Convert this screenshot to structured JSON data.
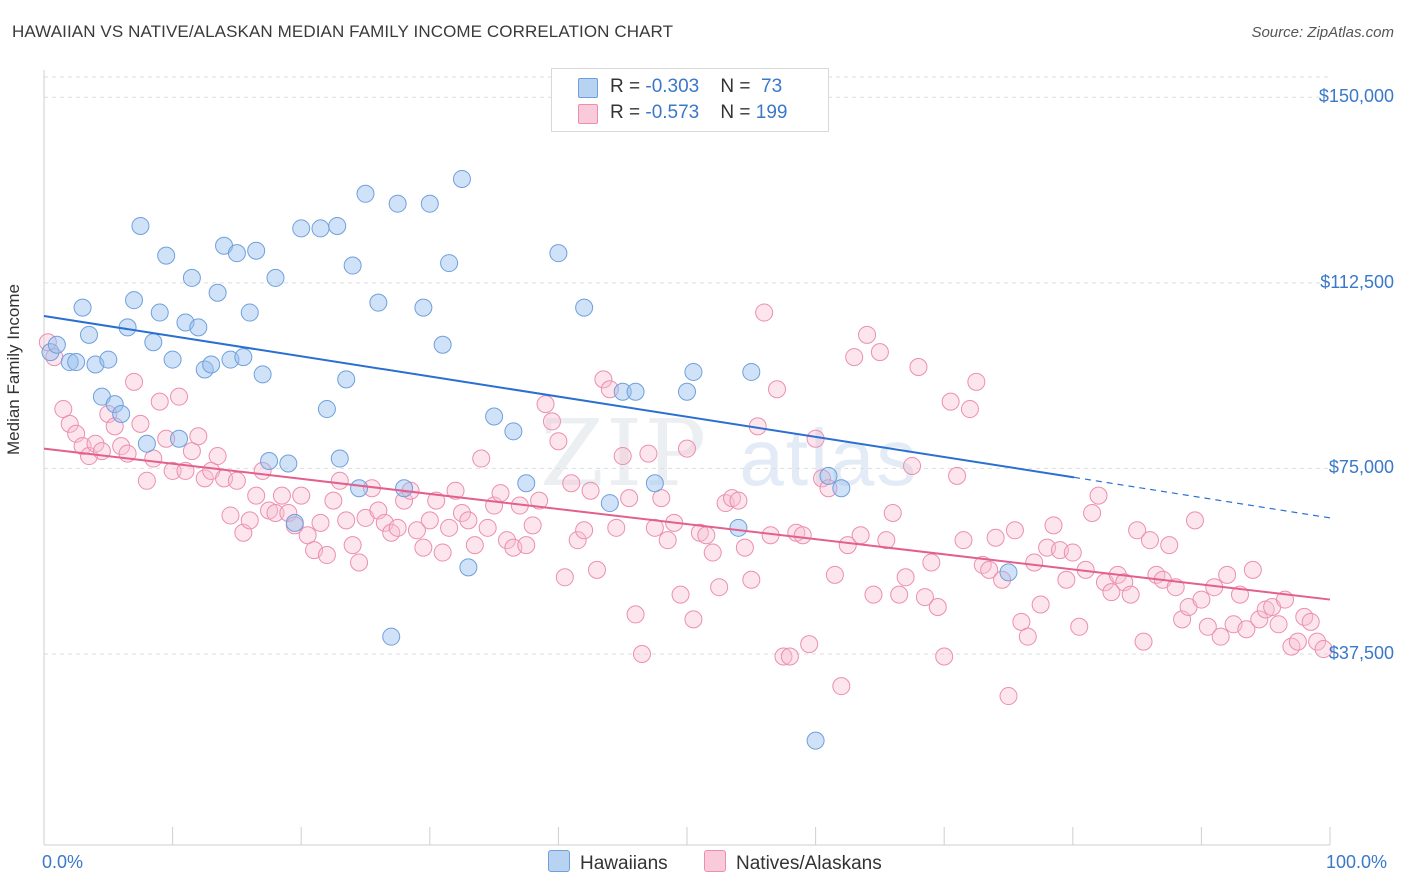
{
  "title": "HAWAIIAN VS NATIVE/ALASKAN MEDIAN FAMILY INCOME CORRELATION CHART",
  "source": "Source: ZipAtlas.com",
  "watermark": {
    "zip": "ZIP",
    "atlas": "atlas"
  },
  "colors": {
    "hawaiians": "#6fa0dc",
    "natives": "#ec8fae",
    "hawaiians_line": "#2a6fd1",
    "natives_line": "#e35f8e",
    "axis_text": "#3a78c9"
  },
  "legend": {
    "rows": [
      {
        "r_label": "R = ",
        "r_value": "-0.303",
        "n_label": "N = ",
        "n_value": " 73"
      },
      {
        "r_label": "R = ",
        "r_value": "-0.573",
        "n_label": "N = ",
        "n_value": "199"
      }
    ]
  },
  "bottom_legend": {
    "hawaiians": "Hawaiians",
    "natives": "Natives/Alaskans"
  },
  "chart_data": {
    "type": "scatter",
    "title": "HAWAIIAN VS NATIVE/ALASKAN MEDIAN FAMILY INCOME CORRELATION CHART",
    "xlabel": "",
    "ylabel": "Median Family Income",
    "x_tick_labels": [
      "0.0%",
      "100.0%"
    ],
    "y_tick_labels": [
      "$37,500",
      "$75,000",
      "$112,500",
      "$150,000"
    ],
    "y_ticks": [
      37500,
      75000,
      112500,
      150000
    ],
    "xlim": [
      0,
      100
    ],
    "ylim": [
      4000,
      157000
    ],
    "grid": true,
    "legend_placement": "top-center",
    "series": [
      {
        "name": "Hawaiians",
        "r": -0.303,
        "n": 73,
        "trend": {
          "x0": 0,
          "y0": 105800,
          "x1": 80.1,
          "y1": 73200,
          "dash_to_x": 100,
          "dash_to_y": 65000
        },
        "points": [
          [
            0.5,
            98500
          ],
          [
            1.0,
            100000
          ],
          [
            2.0,
            96500
          ],
          [
            2.5,
            96500
          ],
          [
            3.0,
            107500
          ],
          [
            3.5,
            102000
          ],
          [
            4.0,
            96000
          ],
          [
            4.5,
            89500
          ],
          [
            5.0,
            97000
          ],
          [
            5.5,
            88000
          ],
          [
            6.0,
            86000
          ],
          [
            6.5,
            103500
          ],
          [
            7.0,
            109000
          ],
          [
            7.5,
            124000
          ],
          [
            8.0,
            80000
          ],
          [
            8.5,
            100500
          ],
          [
            9.0,
            106500
          ],
          [
            9.5,
            118000
          ],
          [
            10.0,
            97000
          ],
          [
            10.5,
            81000
          ],
          [
            11.0,
            104500
          ],
          [
            11.5,
            113500
          ],
          [
            12.0,
            103500
          ],
          [
            12.5,
            95000
          ],
          [
            13.0,
            96000
          ],
          [
            13.5,
            110500
          ],
          [
            14.0,
            120000
          ],
          [
            14.5,
            97000
          ],
          [
            15.0,
            118500
          ],
          [
            15.5,
            97500
          ],
          [
            16.0,
            106500
          ],
          [
            16.5,
            119000
          ],
          [
            17.0,
            94000
          ],
          [
            17.5,
            76500
          ],
          [
            18.0,
            113500
          ],
          [
            19.0,
            76000
          ],
          [
            19.5,
            64000
          ],
          [
            20.0,
            123500
          ],
          [
            21.5,
            123500
          ],
          [
            22.0,
            87000
          ],
          [
            22.8,
            124000
          ],
          [
            23.0,
            77000
          ],
          [
            23.5,
            93000
          ],
          [
            24.0,
            116000
          ],
          [
            24.5,
            71000
          ],
          [
            25.0,
            130500
          ],
          [
            26.0,
            108500
          ],
          [
            27.0,
            41000
          ],
          [
            27.5,
            128500
          ],
          [
            28.0,
            71000
          ],
          [
            29.5,
            107500
          ],
          [
            30.0,
            128500
          ],
          [
            31.0,
            100000
          ],
          [
            31.5,
            116500
          ],
          [
            32.5,
            133500
          ],
          [
            33.0,
            55000
          ],
          [
            35.0,
            85500
          ],
          [
            36.5,
            82500
          ],
          [
            37.5,
            72000
          ],
          [
            40.0,
            118500
          ],
          [
            42.0,
            107500
          ],
          [
            44.0,
            68000
          ],
          [
            45.0,
            90500
          ],
          [
            46.0,
            90500
          ],
          [
            47.5,
            72000
          ],
          [
            50.0,
            90500
          ],
          [
            50.5,
            94500
          ],
          [
            54.0,
            63000
          ],
          [
            55.0,
            94500
          ],
          [
            60.0,
            20000
          ],
          [
            61.0,
            73500
          ],
          [
            62.0,
            71000
          ],
          [
            75.0,
            54000
          ]
        ]
      },
      {
        "name": "Natives/Alaskans",
        "r": -0.573,
        "n": 199,
        "trend": {
          "x0": 0,
          "y0": 79000,
          "x1": 100,
          "y1": 48500
        },
        "points": [
          [
            0.3,
            100500
          ],
          [
            0.8,
            97500
          ],
          [
            1.5,
            87000
          ],
          [
            2.0,
            84000
          ],
          [
            2.5,
            82000
          ],
          [
            3.0,
            79500
          ],
          [
            3.5,
            77500
          ],
          [
            4.0,
            80000
          ],
          [
            4.5,
            78500
          ],
          [
            5.0,
            86000
          ],
          [
            5.5,
            83500
          ],
          [
            6.0,
            79500
          ],
          [
            6.5,
            78000
          ],
          [
            7.0,
            92500
          ],
          [
            7.5,
            84000
          ],
          [
            8.0,
            72500
          ],
          [
            8.5,
            77000
          ],
          [
            9.0,
            88500
          ],
          [
            9.5,
            81000
          ],
          [
            10.0,
            74500
          ],
          [
            10.5,
            89500
          ],
          [
            11.0,
            74500
          ],
          [
            11.5,
            78500
          ],
          [
            12.0,
            81500
          ],
          [
            12.5,
            73000
          ],
          [
            13.0,
            74500
          ],
          [
            13.5,
            77500
          ],
          [
            14.0,
            73000
          ],
          [
            14.5,
            65500
          ],
          [
            15.0,
            72500
          ],
          [
            15.5,
            62000
          ],
          [
            16.0,
            64500
          ],
          [
            16.5,
            69500
          ],
          [
            17.0,
            74500
          ],
          [
            17.5,
            66500
          ],
          [
            18.0,
            66000
          ],
          [
            18.5,
            69500
          ],
          [
            19.0,
            66000
          ],
          [
            19.5,
            63500
          ],
          [
            20.0,
            69500
          ],
          [
            20.5,
            61500
          ],
          [
            21.0,
            58500
          ],
          [
            21.5,
            64000
          ],
          [
            22.0,
            57500
          ],
          [
            22.5,
            68500
          ],
          [
            23.0,
            72500
          ],
          [
            23.5,
            64500
          ],
          [
            24.0,
            59500
          ],
          [
            24.5,
            56000
          ],
          [
            25.0,
            65000
          ],
          [
            25.5,
            71000
          ],
          [
            26.0,
            66500
          ],
          [
            26.5,
            64000
          ],
          [
            27.0,
            62000
          ],
          [
            27.5,
            63000
          ],
          [
            28.0,
            68500
          ],
          [
            28.5,
            70500
          ],
          [
            29.0,
            62500
          ],
          [
            29.5,
            59000
          ],
          [
            30.0,
            64500
          ],
          [
            30.5,
            68500
          ],
          [
            31.0,
            58000
          ],
          [
            31.5,
            63000
          ],
          [
            32.0,
            70500
          ],
          [
            32.5,
            66000
          ],
          [
            33.0,
            64500
          ],
          [
            33.5,
            59500
          ],
          [
            34.0,
            77000
          ],
          [
            34.5,
            63000
          ],
          [
            35.0,
            67500
          ],
          [
            35.5,
            70000
          ],
          [
            36.0,
            60500
          ],
          [
            36.5,
            59000
          ],
          [
            37.0,
            67500
          ],
          [
            37.5,
            59500
          ],
          [
            38.0,
            63500
          ],
          [
            38.5,
            68500
          ],
          [
            39.0,
            88000
          ],
          [
            39.5,
            84500
          ],
          [
            40.0,
            80500
          ],
          [
            40.5,
            53000
          ],
          [
            41.0,
            72000
          ],
          [
            41.5,
            60500
          ],
          [
            42.0,
            62500
          ],
          [
            42.5,
            70500
          ],
          [
            43.0,
            54500
          ],
          [
            43.5,
            93000
          ],
          [
            44.0,
            91000
          ],
          [
            44.5,
            63000
          ],
          [
            45.0,
            77500
          ],
          [
            45.5,
            69000
          ],
          [
            46.0,
            45500
          ],
          [
            46.5,
            37500
          ],
          [
            47.0,
            78000
          ],
          [
            47.5,
            63000
          ],
          [
            48.0,
            69000
          ],
          [
            48.5,
            60500
          ],
          [
            49.0,
            64000
          ],
          [
            49.5,
            49500
          ],
          [
            50.0,
            79000
          ],
          [
            50.5,
            44500
          ],
          [
            51.0,
            62000
          ],
          [
            51.5,
            61500
          ],
          [
            52.0,
            58000
          ],
          [
            52.5,
            51000
          ],
          [
            53.0,
            68000
          ],
          [
            53.5,
            69000
          ],
          [
            54.0,
            68500
          ],
          [
            54.5,
            59000
          ],
          [
            55.0,
            52500
          ],
          [
            55.5,
            83500
          ],
          [
            56.0,
            106500
          ],
          [
            56.5,
            61500
          ],
          [
            57.0,
            91000
          ],
          [
            57.5,
            37000
          ],
          [
            58.0,
            37000
          ],
          [
            58.5,
            62000
          ],
          [
            59.0,
            61500
          ],
          [
            59.5,
            39500
          ],
          [
            60.0,
            81000
          ],
          [
            60.5,
            73000
          ],
          [
            61.0,
            71000
          ],
          [
            61.5,
            53500
          ],
          [
            62.0,
            31000
          ],
          [
            62.5,
            59500
          ],
          [
            63.0,
            97500
          ],
          [
            63.5,
            61500
          ],
          [
            64.0,
            102000
          ],
          [
            64.5,
            49500
          ],
          [
            65.0,
            98500
          ],
          [
            65.5,
            60500
          ],
          [
            66.0,
            66000
          ],
          [
            66.5,
            49500
          ],
          [
            67.0,
            53000
          ],
          [
            67.5,
            75500
          ],
          [
            68.0,
            95500
          ],
          [
            68.5,
            49000
          ],
          [
            69.0,
            56000
          ],
          [
            69.5,
            47000
          ],
          [
            70.0,
            37000
          ],
          [
            70.5,
            88500
          ],
          [
            71.0,
            73500
          ],
          [
            71.5,
            60500
          ],
          [
            72.0,
            87000
          ],
          [
            72.5,
            92500
          ],
          [
            73.0,
            55500
          ],
          [
            73.5,
            54500
          ],
          [
            74.0,
            61000
          ],
          [
            74.5,
            52500
          ],
          [
            75.0,
            29000
          ],
          [
            75.5,
            62500
          ],
          [
            76.0,
            44000
          ],
          [
            76.5,
            41000
          ],
          [
            77.0,
            56000
          ],
          [
            77.5,
            47500
          ],
          [
            78.0,
            59000
          ],
          [
            78.5,
            63500
          ],
          [
            79.0,
            58500
          ],
          [
            79.5,
            52500
          ],
          [
            80.0,
            58000
          ],
          [
            80.5,
            43000
          ],
          [
            81.0,
            54500
          ],
          [
            81.5,
            66000
          ],
          [
            82.0,
            69500
          ],
          [
            82.5,
            52000
          ],
          [
            83.0,
            50000
          ],
          [
            83.5,
            53500
          ],
          [
            84.0,
            52000
          ],
          [
            84.5,
            49500
          ],
          [
            85.0,
            62500
          ],
          [
            85.5,
            40000
          ],
          [
            86.0,
            60500
          ],
          [
            86.5,
            53500
          ],
          [
            87.0,
            52500
          ],
          [
            87.5,
            59500
          ],
          [
            88.0,
            51000
          ],
          [
            88.5,
            44500
          ],
          [
            89.0,
            47000
          ],
          [
            89.5,
            64500
          ],
          [
            90.0,
            48500
          ],
          [
            90.5,
            43000
          ],
          [
            91.0,
            51000
          ],
          [
            91.5,
            41000
          ],
          [
            92.0,
            53500
          ],
          [
            92.5,
            43500
          ],
          [
            93.0,
            49500
          ],
          [
            93.5,
            42500
          ],
          [
            94.0,
            54500
          ],
          [
            94.5,
            44500
          ],
          [
            95.0,
            46500
          ],
          [
            95.5,
            47000
          ],
          [
            96.0,
            43500
          ],
          [
            96.5,
            48500
          ],
          [
            97.0,
            39000
          ],
          [
            97.5,
            40000
          ],
          [
            98.0,
            45000
          ],
          [
            98.5,
            44000
          ],
          [
            99.0,
            40000
          ],
          [
            99.5,
            38500
          ]
        ]
      }
    ]
  }
}
